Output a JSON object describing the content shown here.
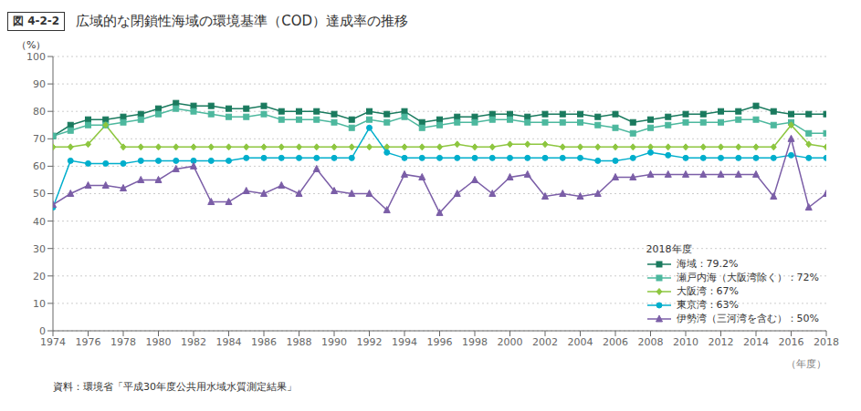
{
  "chart_data": {
    "type": "line",
    "title": "広域的な閉鎖性海域の環境基準（COD）達成率の推移",
    "annotations": [
      "図 4-2-2",
      "資料：環境省「平成30年度公共用水域水質測定結果」",
      "2018年度"
    ],
    "xlabel": "（年度）",
    "ylabel": "（%）",
    "x": [
      1974,
      1975,
      1976,
      1977,
      1978,
      1979,
      1980,
      1981,
      1982,
      1983,
      1984,
      1985,
      1986,
      1987,
      1988,
      1989,
      1990,
      1991,
      1992,
      1993,
      1994,
      1995,
      1996,
      1997,
      1998,
      1999,
      2000,
      2001,
      2002,
      2003,
      2004,
      2005,
      2006,
      2007,
      2008,
      2009,
      2010,
      2011,
      2012,
      2013,
      2014,
      2015,
      2016,
      2017,
      2018
    ],
    "xlim": [
      1974,
      2018
    ],
    "xticks": [
      1974,
      1976,
      1978,
      1980,
      1982,
      1984,
      1986,
      1988,
      1990,
      1992,
      1994,
      1996,
      1998,
      2000,
      2002,
      2004,
      2006,
      2008,
      2010,
      2012,
      2014,
      2016,
      2018
    ],
    "ylim": [
      0,
      100
    ],
    "yticks": [
      0,
      10,
      20,
      30,
      40,
      50,
      60,
      70,
      80,
      90,
      100
    ],
    "grid": true,
    "legend": "lower right",
    "series": [
      {
        "name": "海域：79.2%",
        "color": "#1a7a5e",
        "marker": "square",
        "values": [
          71,
          75,
          77,
          77,
          78,
          79,
          81,
          83,
          82,
          82,
          81,
          81,
          82,
          80,
          80,
          80,
          79,
          77,
          80,
          79,
          80,
          76,
          77,
          78,
          78,
          79,
          79,
          78,
          79,
          79,
          79,
          78,
          79,
          76,
          77,
          78,
          79,
          79,
          80,
          80,
          82,
          80,
          79,
          79,
          79
        ]
      },
      {
        "name": "瀬戸内海（大阪湾除く）：72%",
        "color": "#4db89e",
        "marker": "square",
        "values": [
          71,
          73,
          75,
          75,
          76,
          77,
          79,
          81,
          80,
          79,
          78,
          78,
          79,
          77,
          77,
          77,
          76,
          74,
          77,
          76,
          78,
          74,
          75,
          76,
          76,
          77,
          77,
          76,
          76,
          76,
          76,
          75,
          74,
          72,
          74,
          75,
          76,
          76,
          76,
          77,
          77,
          75,
          76,
          72,
          72
        ]
      },
      {
        "name": "大阪湾：67%",
        "color": "#8dc63f",
        "marker": "diamond",
        "values": [
          67,
          67,
          68,
          75,
          67,
          67,
          67,
          67,
          67,
          67,
          67,
          67,
          67,
          67,
          67,
          67,
          67,
          67,
          67,
          67,
          67,
          67,
          67,
          68,
          67,
          67,
          68,
          68,
          68,
          67,
          67,
          67,
          67,
          67,
          67,
          67,
          67,
          67,
          67,
          67,
          67,
          67,
          75,
          68,
          67
        ]
      },
      {
        "name": "東京湾：63%",
        "color": "#00aecc",
        "marker": "circle",
        "values": [
          45,
          62,
          61,
          61,
          61,
          62,
          62,
          62,
          62,
          62,
          62,
          63,
          63,
          63,
          63,
          63,
          63,
          63,
          74,
          65,
          63,
          63,
          63,
          63,
          63,
          63,
          63,
          63,
          63,
          63,
          63,
          62,
          62,
          63,
          65,
          64,
          63,
          63,
          63,
          63,
          63,
          63,
          64,
          63,
          63
        ]
      },
      {
        "name": "伊勢湾（三河湾を含む）：50%",
        "color": "#7b5ea7",
        "marker": "triangle",
        "values": [
          46,
          50,
          53,
          53,
          52,
          55,
          55,
          59,
          60,
          47,
          47,
          51,
          50,
          53,
          50,
          59,
          51,
          50,
          50,
          44,
          57,
          56,
          43,
          50,
          55,
          50,
          56,
          57,
          49,
          50,
          49,
          50,
          56,
          56,
          57,
          57,
          57,
          57,
          57,
          57,
          57,
          49,
          70,
          45,
          50
        ]
      }
    ]
  }
}
